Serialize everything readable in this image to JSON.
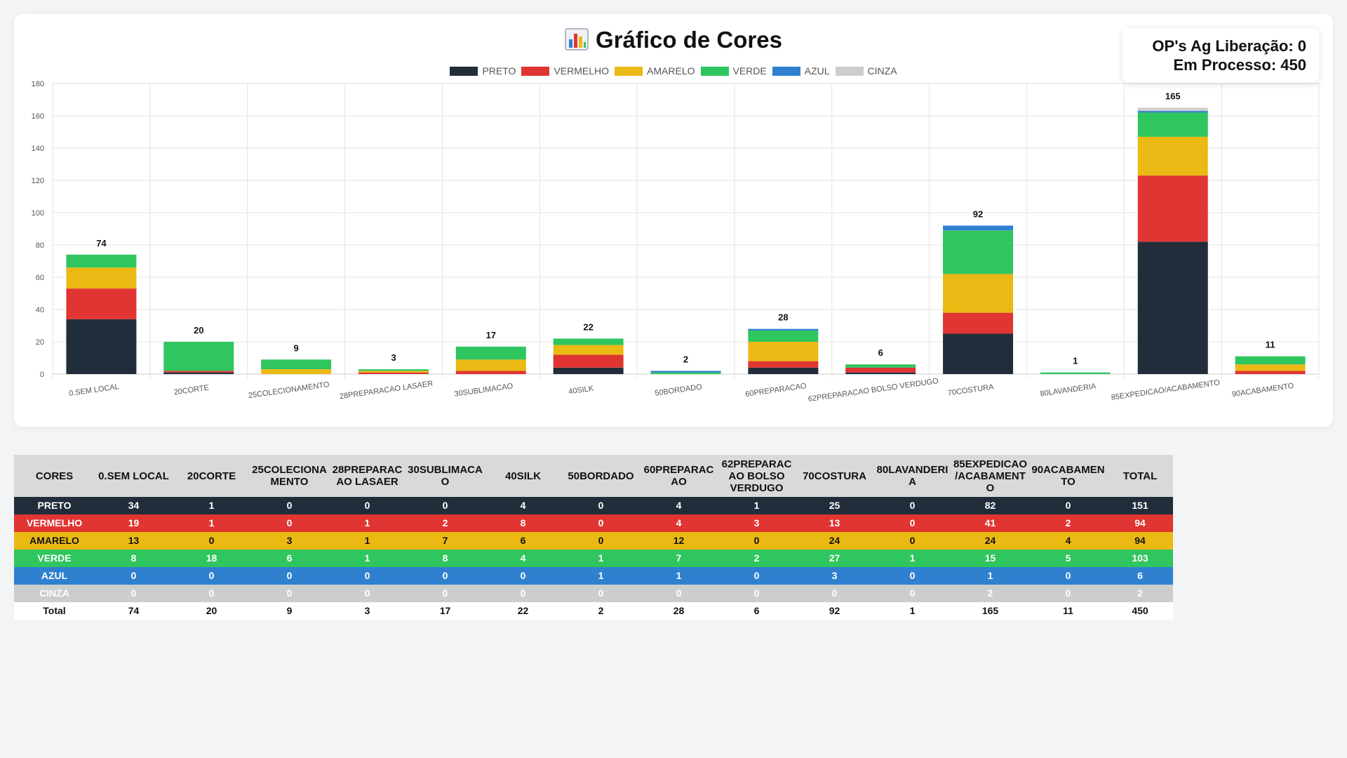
{
  "header": {
    "title": "Gráfico de Cores",
    "title_icon": "bar-chart-icon",
    "ops_ag_liberacao": "OP's Ag Liberação: 0",
    "em_processo": "Em Processo: 450"
  },
  "colors": {
    "PRETO": "#222d3b",
    "VERMELHO": "#e03532",
    "AMARELO": "#ebb913",
    "VERDE": "#2fc55f",
    "AZUL": "#2f81d0",
    "CINZA": "#cdcdcd"
  },
  "chart_data": {
    "type": "bar",
    "stacked": true,
    "title": "Gráfico de Cores",
    "ylim": [
      0,
      180
    ],
    "yticks": [
      0,
      20,
      40,
      60,
      80,
      100,
      120,
      140,
      160,
      180
    ],
    "grid": true,
    "legend_position": "top",
    "categories": [
      "0.SEM LOCAL",
      "20CORTE",
      "25COLECIONAMENTO",
      "28PREPARACAO LASAER",
      "30SUBLIMACAO",
      "40SILK",
      "50BORDADO",
      "60PREPARACAO",
      "62PREPARACAO BOLSO VERDUGO",
      "70COSTURA",
      "80LAVANDERIA",
      "85EXPEDICAO/ACABAMENTO",
      "90ACABAMENTO"
    ],
    "series": [
      {
        "name": "PRETO",
        "values": [
          34,
          1,
          0,
          0,
          0,
          4,
          0,
          4,
          1,
          25,
          0,
          82,
          0
        ]
      },
      {
        "name": "VERMELHO",
        "values": [
          19,
          1,
          0,
          1,
          2,
          8,
          0,
          4,
          3,
          13,
          0,
          41,
          2
        ]
      },
      {
        "name": "AMARELO",
        "values": [
          13,
          0,
          3,
          1,
          7,
          6,
          0,
          12,
          0,
          24,
          0,
          24,
          4
        ]
      },
      {
        "name": "VERDE",
        "values": [
          8,
          18,
          6,
          1,
          8,
          4,
          1,
          7,
          2,
          27,
          1,
          15,
          5
        ]
      },
      {
        "name": "AZUL",
        "values": [
          0,
          0,
          0,
          0,
          0,
          0,
          1,
          1,
          0,
          3,
          0,
          1,
          0
        ]
      },
      {
        "name": "CINZA",
        "values": [
          0,
          0,
          0,
          0,
          0,
          0,
          0,
          0,
          0,
          0,
          0,
          2,
          0
        ]
      }
    ],
    "totals": [
      74,
      20,
      9,
      3,
      17,
      22,
      2,
      28,
      6,
      92,
      1,
      165,
      11
    ]
  },
  "table": {
    "headers": [
      "CORES",
      "0.SEM LOCAL",
      "20CORTE",
      "25COLECIONAMENTO",
      "28PREPARACAO LASAER",
      "30SUBLIMACAO",
      "40SILK",
      "50BORDADO",
      "60PREPARACAO",
      "62PREPARACAO BOLSO VERDUGO",
      "70COSTURA",
      "80LAVANDERIA",
      "85EXPEDICAO/ACABAMENTO",
      "90ACABAMENTO",
      "TOTAL"
    ],
    "rows": [
      {
        "name": "PRETO",
        "values": [
          34,
          1,
          0,
          0,
          0,
          4,
          0,
          4,
          1,
          25,
          0,
          82,
          0,
          151
        ]
      },
      {
        "name": "VERMELHO",
        "values": [
          19,
          1,
          0,
          1,
          2,
          8,
          0,
          4,
          3,
          13,
          0,
          41,
          2,
          94
        ]
      },
      {
        "name": "AMARELO",
        "values": [
          13,
          0,
          3,
          1,
          7,
          6,
          0,
          12,
          0,
          24,
          0,
          24,
          4,
          94
        ]
      },
      {
        "name": "VERDE",
        "values": [
          8,
          18,
          6,
          1,
          8,
          4,
          1,
          7,
          2,
          27,
          1,
          15,
          5,
          103
        ]
      },
      {
        "name": "AZUL",
        "values": [
          0,
          0,
          0,
          0,
          0,
          0,
          1,
          1,
          0,
          3,
          0,
          1,
          0,
          6
        ]
      },
      {
        "name": "CINZA",
        "values": [
          0,
          0,
          0,
          0,
          0,
          0,
          0,
          0,
          0,
          0,
          0,
          2,
          0,
          2
        ]
      }
    ],
    "total_row": {
      "name": "Total",
      "values": [
        74,
        20,
        9,
        3,
        17,
        22,
        2,
        28,
        6,
        92,
        1,
        165,
        11,
        450
      ]
    }
  }
}
